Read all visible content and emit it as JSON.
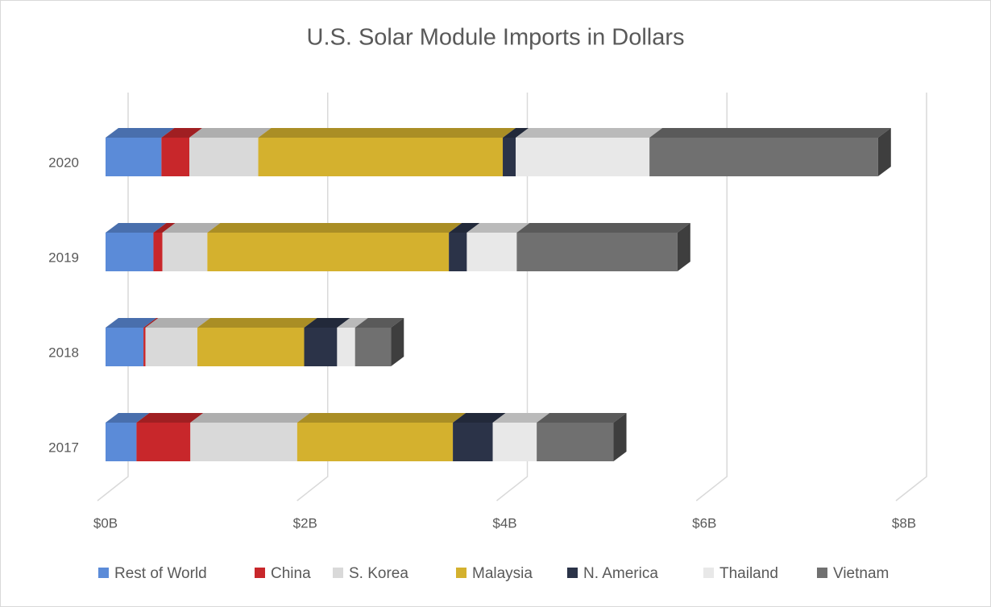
{
  "chart_data": {
    "type": "bar",
    "orientation": "horizontal",
    "stacked": true,
    "title": "U.S. Solar Module Imports in Dollars",
    "categories": [
      "2017",
      "2018",
      "2019",
      "2020"
    ],
    "series": [
      {
        "name": "Rest of World",
        "color": "#5b8bd8",
        "values": [
          0.31,
          0.38,
          0.48,
          0.56
        ]
      },
      {
        "name": "China",
        "color": "#c8272b",
        "values": [
          0.54,
          0.02,
          0.09,
          0.28
        ]
      },
      {
        "name": "S. Korea",
        "color": "#d9d9d9",
        "values": [
          1.07,
          0.52,
          0.45,
          0.69
        ]
      },
      {
        "name": "Malaysia",
        "color": "#d4b12e",
        "values": [
          1.56,
          1.07,
          2.42,
          2.45
        ]
      },
      {
        "name": "N. America",
        "color": "#2b3348",
        "values": [
          0.4,
          0.33,
          0.18,
          0.13
        ]
      },
      {
        "name": "Thailand",
        "color": "#e8e8e8",
        "values": [
          0.44,
          0.18,
          0.5,
          1.34
        ]
      },
      {
        "name": "Vietnam",
        "color": "#707070",
        "values": [
          0.77,
          0.36,
          1.61,
          2.29
        ]
      }
    ],
    "xlim": [
      0,
      8
    ],
    "xticks": [
      {
        "value": 0,
        "label": "$0B"
      },
      {
        "value": 2,
        "label": "$2B"
      },
      {
        "value": 4,
        "label": "$4B"
      },
      {
        "value": 6,
        "label": "$6B"
      },
      {
        "value": 8,
        "label": "$8B"
      }
    ],
    "grid": true,
    "legend": "bottom"
  }
}
